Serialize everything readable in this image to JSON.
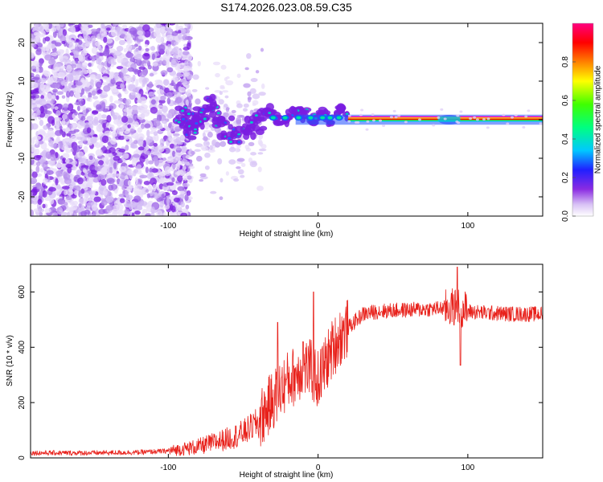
{
  "title": "S174.2026.023.08.59.C35",
  "colors": {
    "snr_line": "#e8211b",
    "band_top": "#ff00aa",
    "band_mid": "#ff0000",
    "band_low": "#00c8ff",
    "blob_core": "#7a1ce0",
    "blob_hot": "#00c8c8"
  },
  "chart_data": [
    {
      "type": "heatmap",
      "title": "S174.2026.023.08.59.C35",
      "xlabel": "Height of straight line (km)",
      "ylabel": "Frequency (Hz)",
      "xlim": [
        -192,
        150
      ],
      "ylim": [
        -25,
        25
      ],
      "xticks": [
        -100,
        0,
        100
      ],
      "yticks": [
        -20,
        -10,
        0,
        10,
        20
      ],
      "colorbar": {
        "label": "Normalized spectral amplitude",
        "range": [
          0,
          1
        ],
        "ticks": [
          0.0,
          0.2,
          0.4,
          0.6,
          0.8
        ],
        "tick_labels": [
          "0.0",
          "0.2",
          "0.4",
          "0.6",
          "0.8"
        ],
        "colormap": [
          "#ffffff",
          "#d9c2f5",
          "#8a2be2",
          "#2020ff",
          "#00c8ff",
          "#00ff80",
          "#40ff00",
          "#ffff00",
          "#ff8000",
          "#ff0000",
          "#ff0080"
        ]
      },
      "features": {
        "noise_region_km": [
          -192,
          -95
        ],
        "transition_region_km": [
          -95,
          20
        ],
        "carrier_line_km": [
          20,
          150
        ],
        "carrier_frequency_hz": 0,
        "enhanced_band_km": [
          80,
          95
        ]
      }
    },
    {
      "type": "line",
      "xlabel": "Height of straight line (km)",
      "ylabel": "SNR (10 * v/v)",
      "xlim": [
        -192,
        150
      ],
      "ylim": [
        0,
        700
      ],
      "xticks": [
        -100,
        0,
        100
      ],
      "yticks": [
        0,
        200,
        400,
        600
      ],
      "series": [
        {
          "name": "SNR",
          "x": [
            -192,
            -150,
            -120,
            -100,
            -80,
            -60,
            -50,
            -40,
            -35,
            -30,
            -25,
            -20,
            -15,
            -10,
            -5,
            0,
            5,
            10,
            15,
            20,
            30,
            40,
            60,
            80,
            90,
            95,
            100,
            110,
            130,
            150
          ],
          "y": [
            18,
            18,
            20,
            25,
            40,
            70,
            90,
            130,
            170,
            210,
            250,
            280,
            300,
            330,
            320,
            280,
            340,
            400,
            440,
            470,
            520,
            530,
            535,
            540,
            545,
            545,
            530,
            525,
            520,
            520
          ]
        }
      ],
      "annotations": {
        "spikes": [
          [
            -27,
            490
          ],
          [
            -3,
            600
          ],
          [
            -10,
            420
          ],
          [
            93,
            690
          ],
          [
            95,
            335
          ]
        ]
      }
    }
  ]
}
